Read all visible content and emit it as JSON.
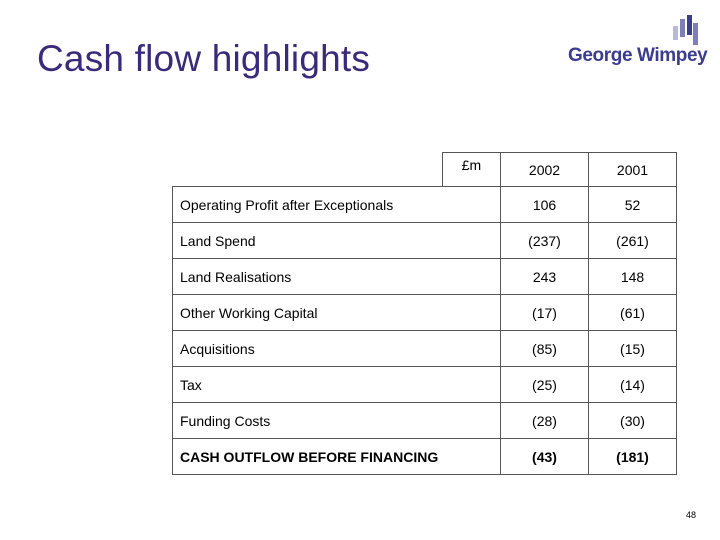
{
  "slide": {
    "title": "Cash flow highlights",
    "page_number": "48"
  },
  "logo": {
    "text": "George Wimpey"
  },
  "table": {
    "unit": "£m",
    "columns": [
      "2002",
      "2001"
    ],
    "rows": [
      {
        "label": "Operating Profit after Exceptionals",
        "v2002": "106",
        "v2001": "52"
      },
      {
        "label": "Land Spend",
        "v2002": "(237)",
        "v2001": "(261)"
      },
      {
        "label": "Land Realisations",
        "v2002": "243",
        "v2001": "148"
      },
      {
        "label": "Other Working Capital",
        "v2002": "(17)",
        "v2001": "(61)"
      },
      {
        "label": "Acquisitions",
        "v2002": "(85)",
        "v2001": "(15)"
      },
      {
        "label": "Tax",
        "v2002": "(25)",
        "v2001": "(14)"
      },
      {
        "label": "Funding Costs",
        "v2002": "(28)",
        "v2001": "(30)"
      },
      {
        "label": "CASH OUTFLOW BEFORE FINANCING",
        "v2002": "(43)",
        "v2001": "(181)"
      }
    ]
  },
  "colors": {
    "title": "#3a2b7a",
    "logo_text": "#3b3c8e",
    "logo_bar_dark": "#3b3c8e",
    "logo_bar_mid": "#7e7fb8",
    "logo_bar_light": "#b9b9d8"
  }
}
